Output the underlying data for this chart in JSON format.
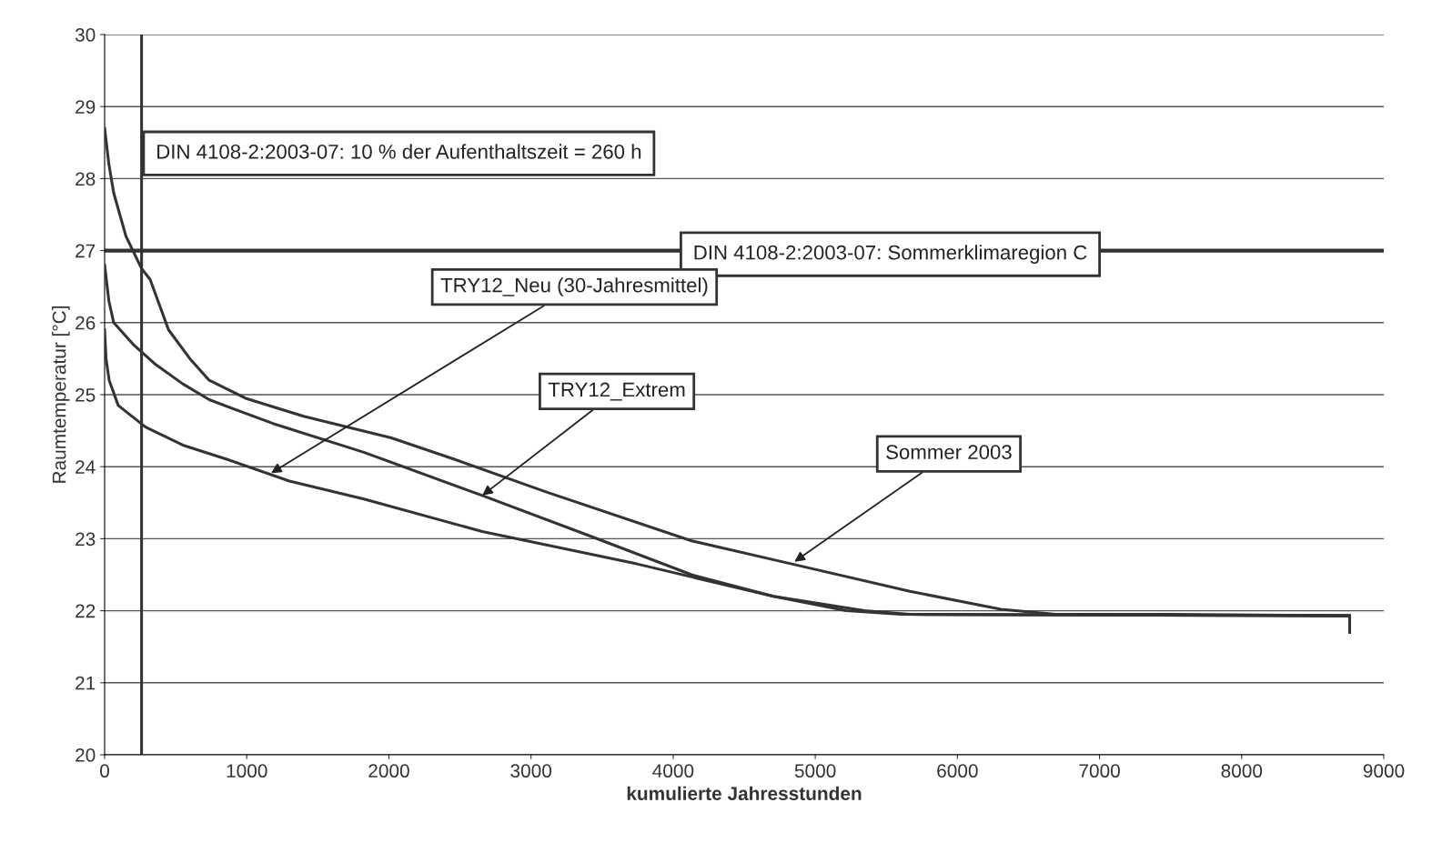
{
  "chart_data": {
    "type": "line",
    "xlabel": "kumulierte Jahresstunden",
    "ylabel": "Raumtemperatur [°C]",
    "xlim": [
      0,
      9000
    ],
    "xticks": [
      0,
      1000,
      2000,
      3000,
      4000,
      5000,
      6000,
      7000,
      8000,
      9000
    ],
    "ylim": [
      20,
      30
    ],
    "yticks": [
      20,
      21,
      22,
      23,
      24,
      25,
      26,
      27,
      28,
      29,
      30
    ],
    "grid": "y",
    "legend": false,
    "marker": "none",
    "line_style": "solid",
    "series": [
      {
        "color": "#333333",
        "x": [
          0,
          30,
          64,
          150,
          260,
          320,
          450,
          600,
          736,
          992,
          1400,
          2017,
          2465,
          3105,
          4130,
          4834,
          5666,
          6306,
          6690,
          7500,
          8760,
          8760
        ],
        "values": [
          28.7,
          28.2,
          27.8,
          27.2,
          26.75,
          26.6,
          25.9,
          25.5,
          25.2,
          24.95,
          24.7,
          24.4,
          24.1,
          23.65,
          22.97,
          22.65,
          22.27,
          22.02,
          21.95,
          21.95,
          21.93,
          21.7
        ]
      },
      {
        "color": "#333333",
        "x": [
          0,
          30,
          64,
          200,
          352,
          550,
          736,
          1184,
          1824,
          2657,
          3425,
          4130,
          4706,
          5346,
          5666,
          8760
        ],
        "values": [
          26.8,
          26.3,
          26.0,
          25.7,
          25.43,
          25.15,
          24.93,
          24.6,
          24.2,
          23.6,
          23.03,
          22.5,
          22.2,
          22.0,
          21.95,
          21.93
        ]
      },
      {
        "color": "#333333",
        "x": [
          0,
          10,
          32,
          96,
          288,
          550,
          864,
          1300,
          1824,
          2657,
          3745,
          4706,
          5218,
          5600,
          8760
        ],
        "values": [
          25.9,
          25.5,
          25.2,
          24.85,
          24.55,
          24.3,
          24.1,
          23.8,
          23.55,
          23.1,
          22.65,
          22.2,
          22.0,
          21.95,
          21.93
        ]
      }
    ],
    "ref_lines": [
      {
        "axis": "x",
        "value": 260,
        "label": "DIN 4108-2:2003-07: 10 % der Aufenthaltszeit = 260 h",
        "color": "#333333"
      },
      {
        "axis": "y",
        "value": 27,
        "color": "#333333"
      }
    ],
    "annotations": [
      "DIN 4108-2:2003-07: Sommerklimaregion C",
      {
        "text": "TRY12_Neu (30-Jahresmittel)",
        "x": 1171,
        "y": 23.91
      },
      {
        "text": "TRY12_Extrem",
        "x": 2657,
        "y": 23.6
      },
      {
        "text": "Sommer 2003",
        "x": 4853,
        "y": 22.68
      }
    ]
  }
}
